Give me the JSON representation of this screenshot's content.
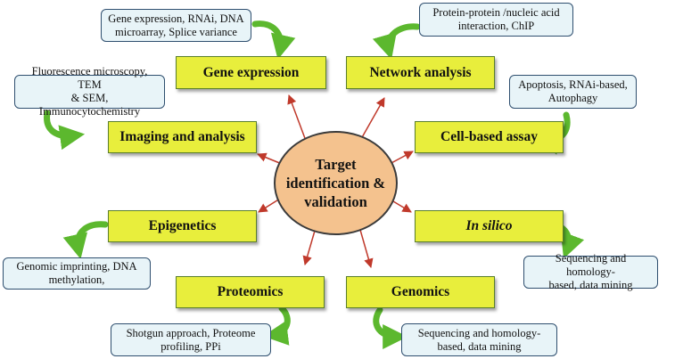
{
  "center": {
    "label": "Target\nidentification &\nvalidation",
    "fill": "#f4c28e"
  },
  "colors": {
    "topic_fill": "#e8ee3c",
    "detail_fill": "#e8f4f8",
    "arrow": "#c0392b",
    "curve_arrow": "#5cb82e"
  },
  "topics": {
    "gene_expression": "Gene expression",
    "network_analysis": "Network analysis",
    "imaging": "Imaging and analysis",
    "cell_based": "Cell-based assay",
    "epigenetics": "Epigenetics",
    "in_silico": "In silico",
    "proteomics": "Proteomics",
    "genomics": "Genomics"
  },
  "details": {
    "gene_expression": "Gene expression, RNAi, DNA\nmicroarray, Splice variance",
    "network_analysis": "Protein-protein /nucleic acid\ninteraction, ChIP",
    "imaging": "Fluorescence microscopy, TEM\n& SEM, Immunocytochemistry",
    "cell_based": "Apoptosis, RNAi-based,\nAutophagy",
    "epigenetics": "Genomic imprinting, DNA\nmethylation,",
    "in_silico": "Sequencing and homology-\nbased, data mining",
    "proteomics": "Shotgun approach, Proteome\nprofiling, PPi",
    "genomics": "Sequencing and homology-\nbased, data mining"
  }
}
